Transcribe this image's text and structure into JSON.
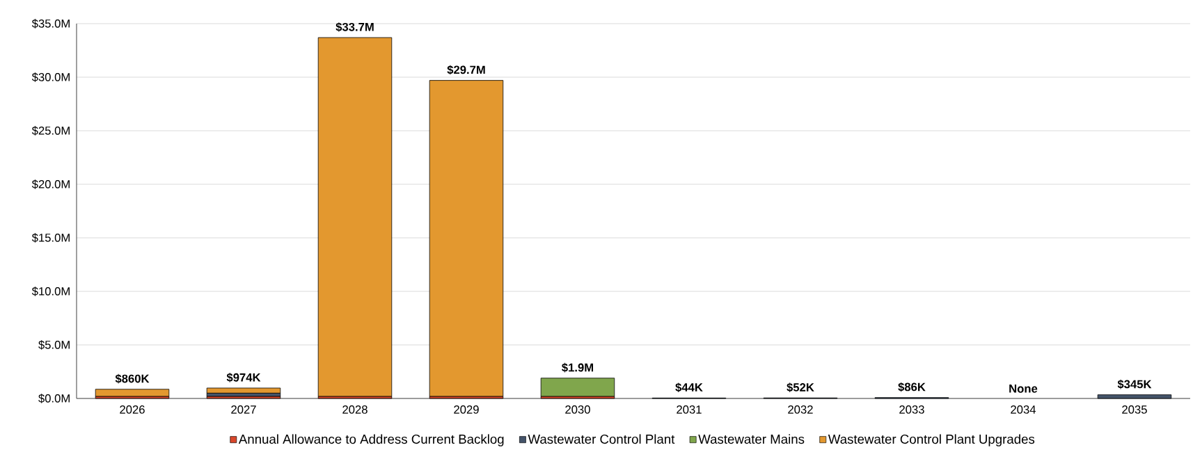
{
  "chart_data": {
    "type": "bar",
    "stacked": true,
    "categories": [
      "2026",
      "2027",
      "2028",
      "2029",
      "2030",
      "2031",
      "2032",
      "2033",
      "2034",
      "2035"
    ],
    "series": [
      {
        "name": "Annual Allowance to Address Current Backlog",
        "color": "#d9472b",
        "values": [
          0.2,
          0.2,
          0.2,
          0.2,
          0.2,
          null,
          null,
          null,
          null,
          null
        ]
      },
      {
        "name": "Wastewater Control Plant",
        "color": "#44546a",
        "values": [
          null,
          0.3,
          null,
          null,
          null,
          0.044,
          0.052,
          0.086,
          null,
          0.345
        ]
      },
      {
        "name": "Wastewater Mains",
        "color": "#80a64c",
        "values": [
          null,
          null,
          null,
          null,
          1.7,
          null,
          null,
          null,
          null,
          null
        ]
      },
      {
        "name": "Wastewater Control Plant Upgrades",
        "color": "#e3982f",
        "values": [
          0.66,
          0.474,
          33.5,
          29.5,
          null,
          null,
          null,
          null,
          null,
          null
        ]
      }
    ],
    "totals": [
      "$860K",
      "$974K",
      "$33.7M",
      "$29.7M",
      "$1.9M",
      "$44K",
      "$52K",
      "$86K",
      "None",
      "$345K"
    ],
    "ylim": [
      0,
      35
    ],
    "yticks": [
      {
        "value": 0,
        "label": "$0.0M"
      },
      {
        "value": 5,
        "label": "$5.0M"
      },
      {
        "value": 10,
        "label": "$10.0M"
      },
      {
        "value": 15,
        "label": "$15.0M"
      },
      {
        "value": 20,
        "label": "$20.0M"
      },
      {
        "value": 25,
        "label": "$25.0M"
      },
      {
        "value": 30,
        "label": "$30.0M"
      },
      {
        "value": 35,
        "label": "$35.0M"
      }
    ],
    "grid": "y",
    "legend": "bottom"
  }
}
